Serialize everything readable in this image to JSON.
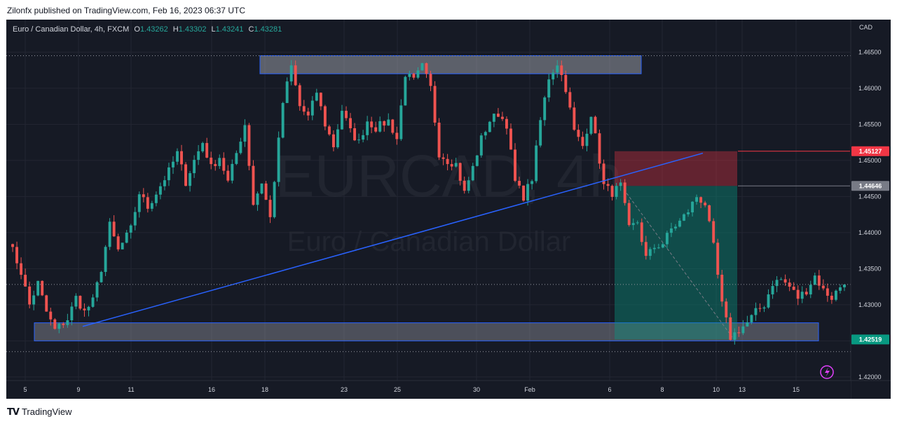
{
  "header": {
    "published_text": "Zilonfx published on TradingView.com, Feb 16, 2023 06:37 UTC"
  },
  "legend": {
    "symbol": "Euro / Canadian Dollar, 4h, FXCM",
    "o_label": "O",
    "o": "1.43262",
    "h_label": "H",
    "h": "1.43302",
    "l_label": "L",
    "l": "1.43241",
    "c_label": "C",
    "c": "1.43281"
  },
  "currency": "CAD",
  "watermark": {
    "ticker": "EURCAD, 4h",
    "name": "Euro / Canadian Dollar"
  },
  "footer": {
    "brand": "TradingView"
  },
  "colors": {
    "up": "#26a69a",
    "down": "#ef5350",
    "trendline": "#2962ff",
    "stop": "#f23645",
    "entry": "#787b86",
    "target": "#089981"
  },
  "chart_data": {
    "type": "candlestick",
    "title": "Euro / Canadian Dollar, 4h, FXCM",
    "x_ticks": [
      "5",
      "9",
      "11",
      "16",
      "18",
      "23",
      "25",
      "30",
      "Feb",
      "6",
      "8",
      "10",
      "13",
      "15"
    ],
    "y_ticks": [
      "1.46500",
      "1.46000",
      "1.45500",
      "1.45000",
      "1.44500",
      "1.44000",
      "1.43500",
      "1.43000",
      "1.42500",
      "1.42000"
    ],
    "ylim": [
      1.4195,
      1.4695
    ],
    "price_labels": [
      {
        "value": 1.45127,
        "text": "1.45127",
        "role": "stop"
      },
      {
        "value": 1.44646,
        "text": "1.44646",
        "role": "entry"
      },
      {
        "value": 1.42519,
        "text": "1.42519",
        "role": "target"
      }
    ],
    "resistance_zone": [
      1.462,
      1.4645
    ],
    "support_zone": [
      1.425,
      1.4275
    ],
    "trendline": [
      {
        "bar": 20,
        "price": 1.427
      },
      {
        "bar": 158,
        "price": 1.451
      }
    ],
    "short_position": {
      "start_bar": 141,
      "end_bar": 170,
      "entry": 1.44646,
      "stop": 1.45127,
      "target": 1.42519
    },
    "anchors": [
      [
        0,
        1.439
      ],
      [
        3,
        1.4345
      ],
      [
        5,
        1.43
      ],
      [
        7,
        1.433
      ],
      [
        9,
        1.429
      ],
      [
        11,
        1.4265
      ],
      [
        14,
        1.428
      ],
      [
        16,
        1.431
      ],
      [
        18,
        1.429
      ],
      [
        20,
        1.4305
      ],
      [
        22,
        1.435
      ],
      [
        24,
        1.441
      ],
      [
        26,
        1.4375
      ],
      [
        29,
        1.4405
      ],
      [
        31,
        1.4455
      ],
      [
        33,
        1.4435
      ],
      [
        36,
        1.4465
      ],
      [
        38,
        1.4485
      ],
      [
        40,
        1.451
      ],
      [
        42,
        1.447
      ],
      [
        44,
        1.45
      ],
      [
        46,
        1.4525
      ],
      [
        48,
        1.449
      ],
      [
        50,
        1.4505
      ],
      [
        52,
        1.447
      ],
      [
        54,
        1.451
      ],
      [
        56,
        1.455
      ],
      [
        58,
        1.444
      ],
      [
        60,
        1.447
      ],
      [
        62,
        1.442
      ],
      [
        65,
        1.458
      ],
      [
        67,
        1.463
      ],
      [
        69,
        1.4575
      ],
      [
        71,
        1.456
      ],
      [
        73,
        1.4595
      ],
      [
        75,
        1.455
      ],
      [
        77,
        1.452
      ],
      [
        79,
        1.457
      ],
      [
        81,
        1.454
      ],
      [
        83,
        1.4525
      ],
      [
        85,
        1.4555
      ],
      [
        87,
        1.4545
      ],
      [
        90,
        1.4555
      ],
      [
        92,
        1.453
      ],
      [
        94,
        1.462
      ],
      [
        96,
        1.461
      ],
      [
        98,
        1.463
      ],
      [
        100,
        1.46
      ],
      [
        102,
        1.451
      ],
      [
        104,
        1.45
      ],
      [
        106,
        1.4495
      ],
      [
        108,
        1.4455
      ],
      [
        110,
        1.449
      ],
      [
        112,
        1.453
      ],
      [
        114,
        1.4555
      ],
      [
        116,
        1.4565
      ],
      [
        118,
        1.455
      ],
      [
        120,
        1.447
      ],
      [
        122,
        1.445
      ],
      [
        124,
        1.4475
      ],
      [
        126,
        1.4555
      ],
      [
        128,
        1.4615
      ],
      [
        130,
        1.4635
      ],
      [
        132,
        1.46
      ],
      [
        134,
        1.454
      ],
      [
        136,
        1.452
      ],
      [
        138,
        1.4565
      ],
      [
        140,
        1.45
      ],
      [
        141,
        1.4465
      ],
      [
        143,
        1.4455
      ],
      [
        145,
        1.4465
      ],
      [
        147,
        1.4405
      ],
      [
        149,
        1.4415
      ],
      [
        151,
        1.4365
      ],
      [
        153,
        1.438
      ],
      [
        155,
        1.4385
      ],
      [
        157,
        1.4405
      ],
      [
        159,
        1.4415
      ],
      [
        161,
        1.443
      ],
      [
        163,
        1.445
      ],
      [
        165,
        1.444
      ],
      [
        167,
        1.438
      ],
      [
        169,
        1.43
      ],
      [
        171,
        1.4255
      ],
      [
        173,
        1.4265
      ],
      [
        175,
        1.4275
      ],
      [
        177,
        1.429
      ],
      [
        179,
        1.43
      ],
      [
        181,
        1.433
      ],
      [
        183,
        1.4335
      ],
      [
        185,
        1.4325
      ],
      [
        187,
        1.431
      ],
      [
        189,
        1.432
      ],
      [
        191,
        1.434
      ],
      [
        193,
        1.432
      ],
      [
        195,
        1.431
      ],
      [
        197,
        1.4325
      ],
      [
        198,
        1.4328
      ]
    ]
  }
}
